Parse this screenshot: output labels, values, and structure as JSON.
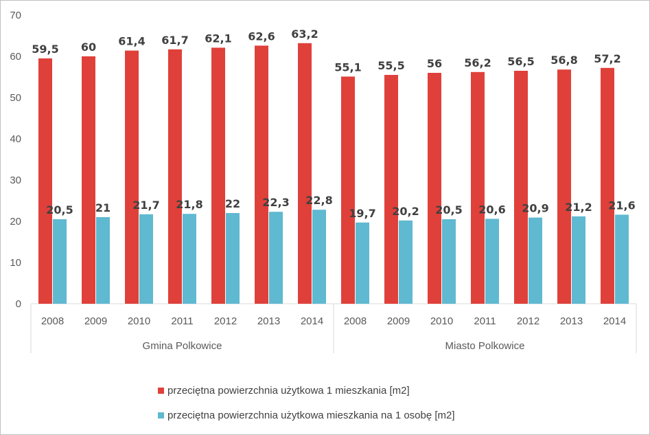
{
  "chart_data": {
    "type": "bar",
    "groups": [
      {
        "label": "Gmina Polkowice",
        "categories": [
          "2008",
          "2009",
          "2010",
          "2011",
          "2012",
          "2013",
          "2014"
        ]
      },
      {
        "label": "Miasto Polkowice",
        "categories": [
          "2008",
          "2009",
          "2010",
          "2011",
          "2012",
          "2013",
          "2014"
        ]
      }
    ],
    "series": [
      {
        "name": "przeciętna powierzchnia użytkowa 1 mieszkania [m2]",
        "color": "#e0403a",
        "values": [
          59.5,
          60,
          61.4,
          61.7,
          62.1,
          62.6,
          63.2,
          55.1,
          55.5,
          56,
          56.2,
          56.5,
          56.8,
          57.2
        ],
        "labels": [
          "59,5",
          "60",
          "61,4",
          "61,7",
          "62,1",
          "62,6",
          "63,2",
          "55,1",
          "55,5",
          "56",
          "56,2",
          "56,5",
          "56,8",
          "57,2"
        ]
      },
      {
        "name": "przeciętna powierzchnia użytkowa mieszkania na 1 osobę [m2]",
        "color": "#5fb9d0",
        "values": [
          20.5,
          21,
          21.7,
          21.8,
          22,
          22.3,
          22.8,
          19.7,
          20.2,
          20.5,
          20.6,
          20.9,
          21.2,
          21.6
        ],
        "labels": [
          "20,5",
          "21",
          "21,7",
          "21,8",
          "22",
          "22,3",
          "22,8",
          "19,7",
          "20,2",
          "20,5",
          "20,6",
          "20,9",
          "21,2",
          "21,6"
        ]
      }
    ],
    "ylim": [
      0,
      70
    ],
    "yticks": [
      "0",
      "10",
      "20",
      "30",
      "40",
      "50",
      "60",
      "70"
    ],
    "grid": false,
    "legend_position": "bottom"
  }
}
